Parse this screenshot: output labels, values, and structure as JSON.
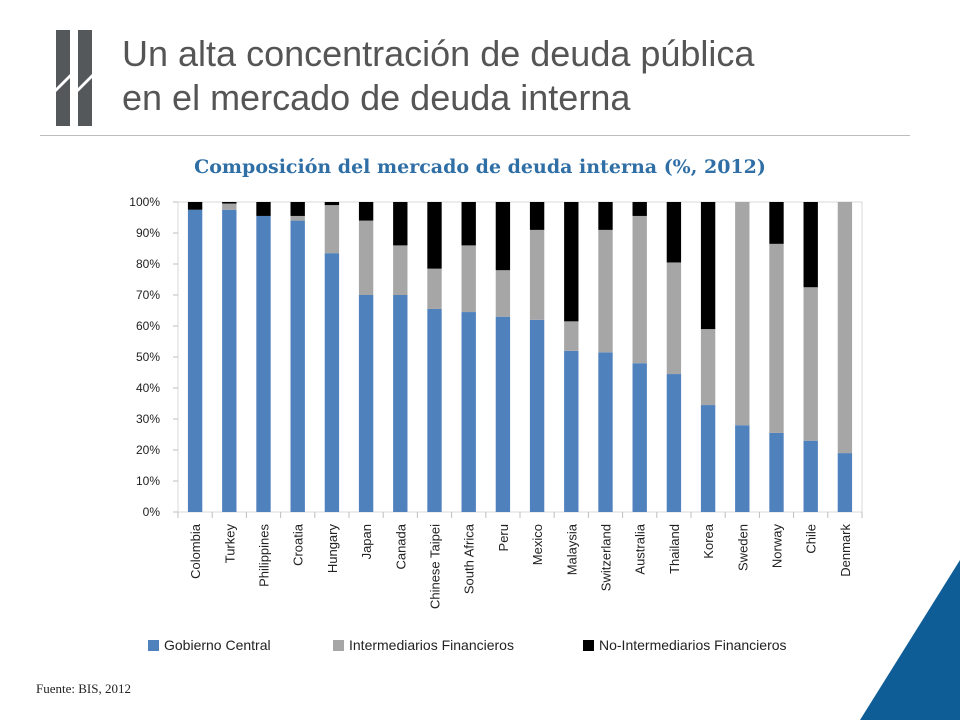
{
  "slide": {
    "title_line1": "Un alta concentración de deuda pública",
    "title_line2": "en el mercado de deuda interna",
    "source": "Fuente: BIS, 2012"
  },
  "colors": {
    "accent": "#2f6fa6",
    "logo": "#54585b",
    "corner": "#0e5d96"
  },
  "chart_data": {
    "type": "bar",
    "stacked": true,
    "title": "Composición del mercado de deuda interna (%, 2012)",
    "categories": [
      "Colombia",
      "Turkey",
      "Philippines",
      "Croatia",
      "Hungary",
      "Japan",
      "Canada",
      "Chinese Taipei",
      "South Africa",
      "Peru",
      "Mexico",
      "Malaysia",
      "Switzerland",
      "Australia",
      "Thailand",
      "Korea",
      "Sweden",
      "Norway",
      "Chile",
      "Denmark"
    ],
    "series": [
      {
        "name": "Gobierno Central",
        "color": "#4f81bd",
        "values": [
          97.5,
          97.5,
          95.5,
          94,
          83.5,
          70,
          70,
          65.5,
          64.5,
          63,
          62,
          52,
          51.5,
          48,
          44.5,
          34.5,
          28,
          25.5,
          23,
          19
        ]
      },
      {
        "name": "Intermediarios Financieros",
        "color": "#a6a6a6",
        "values": [
          0,
          2,
          0,
          1.5,
          15.5,
          24,
          16,
          13,
          21.5,
          15,
          29,
          9.5,
          39.5,
          47.5,
          36,
          24.5,
          72,
          61,
          49.5,
          81
        ]
      },
      {
        "name": "No-Intermediarios Financieros",
        "color": "#000000",
        "values": [
          2.5,
          0.5,
          4.5,
          4.5,
          1,
          6,
          14,
          21.5,
          14,
          22,
          9,
          38.5,
          9,
          4.5,
          19.5,
          41,
          0,
          13.5,
          27.5,
          0
        ]
      }
    ],
    "yticks": [
      "0%",
      "10%",
      "20%",
      "30%",
      "40%",
      "50%",
      "60%",
      "70%",
      "80%",
      "90%",
      "100%"
    ],
    "ylim": [
      0,
      100
    ],
    "legend_position": "bottom",
    "grid": false
  }
}
